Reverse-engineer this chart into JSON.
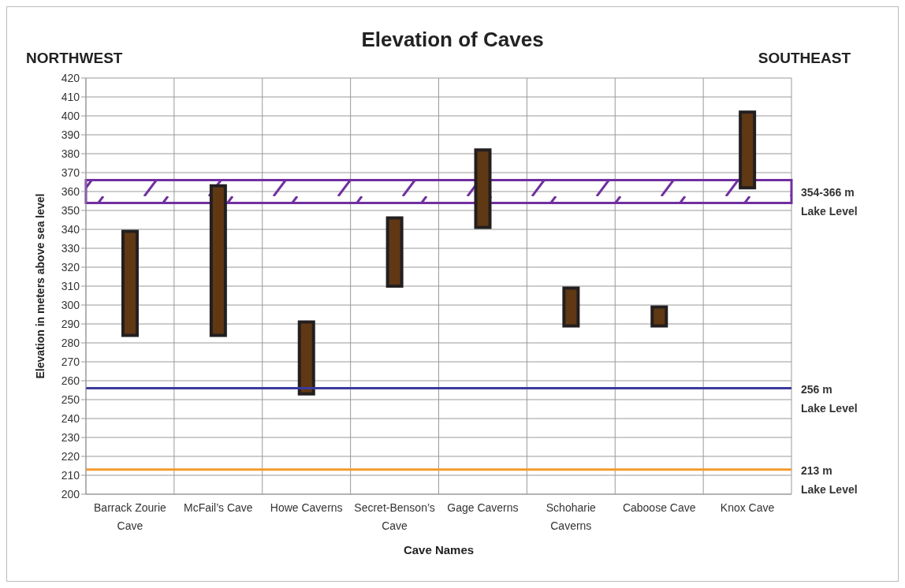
{
  "chart_data": {
    "type": "bar",
    "title": "Elevation of Caves",
    "xlabel": "Cave Names",
    "ylabel": "Elevation in meters above sea level",
    "annotations": [
      "NORTHWEST",
      "SOUTHEAST"
    ],
    "categories": [
      "Barrack Zourie Cave",
      "McFail’s Cave",
      "Howe Caverns",
      "Secret-Benson’s Cave",
      "Gage Caverns",
      "Schoharie Caverns",
      "Caboose Cave",
      "Knox Cave"
    ],
    "base": [
      284,
      284,
      253,
      310,
      341,
      289,
      289,
      362
    ],
    "values": [
      55,
      79,
      38,
      36,
      41,
      20,
      10,
      40
    ],
    "color": "#603813",
    "ylim": [
      200,
      420
    ],
    "yticks": [
      200,
      210,
      220,
      230,
      240,
      250,
      260,
      270,
      280,
      290,
      300,
      310,
      320,
      330,
      340,
      350,
      360,
      370,
      380,
      390,
      400,
      410,
      420
    ],
    "grid": true,
    "ref_lines": [
      {
        "axis": "y",
        "value": 256,
        "label": "256 m Lake Level",
        "color": "#3b3b9e"
      },
      {
        "axis": "y",
        "value": 213,
        "label": "213 m Lake Level",
        "color": "#f39a2e"
      }
    ],
    "bands": [
      {
        "axis": "y",
        "from": 354,
        "to": 366,
        "label": "354-366 m Lake Level",
        "color": "#7030a0"
      }
    ]
  }
}
